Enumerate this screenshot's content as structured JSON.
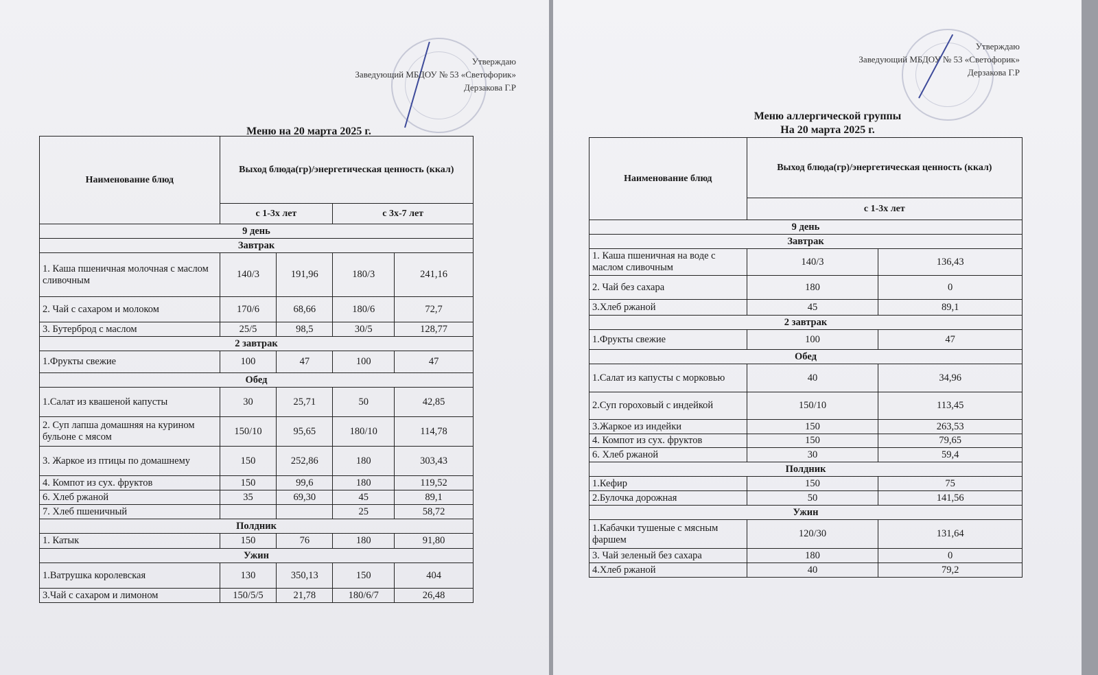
{
  "left": {
    "approval": [
      "Утверждаю",
      "Заведующий МБДОУ № 53 «Светофорик»",
      "Дерзакова Г.Р"
    ],
    "title": "Меню на 20 марта 2025 г.",
    "header": {
      "name": "Наименование блюд",
      "output": "Выход блюда(гр)/энергетическая ценность (ккал)",
      "age1": "с 1-3х лет",
      "age2": "с 3х-7 лет"
    },
    "rows": [
      {
        "s": "9 день"
      },
      {
        "s": "Завтрак"
      },
      {
        "c": [
          "1. Каша пшеничная молочная с маслом сливочным",
          "140/3",
          "191,96",
          "180/3",
          "241,16"
        ],
        "h": 64
      },
      {
        "c": [
          "2. Чай с сахаром и молоком",
          "170/6",
          "68,66",
          "180/6",
          "72,7"
        ],
        "h": 37
      },
      {
        "c": [
          "3. Бутерброд с маслом",
          "25/5",
          "98,5",
          "30/5",
          "128,77"
        ],
        "h": 21
      },
      {
        "s": "2  завтрак"
      },
      {
        "c": [
          "1.Фрукты свежие",
          "100",
          "47",
          "100",
          "47"
        ],
        "h": 32
      },
      {
        "s": "Обед"
      },
      {
        "c": [
          "1.Салат из квашеной капусты",
          "30",
          "25,71",
          "50",
          "42,85"
        ],
        "h": 43
      },
      {
        "c": [
          "2. Суп лапша домашняя  на курином бульоне с мясом",
          "150/10",
          "95,65",
          "180/10",
          "114,78"
        ],
        "h": 43
      },
      {
        "c": [
          "3. Жаркое  из птицы по домашнему",
          "150",
          "252,86",
          "180",
          "303,43"
        ],
        "h": 43
      },
      {
        "c": [
          "4. Компот из сух. фруктов",
          "150",
          "99,6",
          "180",
          "119,52"
        ],
        "h": 21
      },
      {
        "c": [
          "6. Хлеб ржаной",
          "35",
          "69,30",
          "45",
          "89,1"
        ],
        "h": 21
      },
      {
        "c": [
          "7. Хлеб пшеничный",
          "",
          "",
          "25",
          "58,72"
        ],
        "h": 21
      },
      {
        "s": "Полдник"
      },
      {
        "c": [
          "1. Катык",
          "150",
          "76",
          "180",
          "91,80"
        ],
        "h": 22
      },
      {
        "s": "Ужин"
      },
      {
        "c": [
          "1.Ватрушка королевская",
          "130",
          "350,13",
          "150",
          "404"
        ],
        "h": 37
      },
      {
        "c": [
          "3.Чай с сахаром и лимоном",
          "150/5/5",
          "21,78",
          "180/6/7",
          "26,48"
        ],
        "h": 21
      }
    ]
  },
  "right": {
    "approval": [
      "Утверждаю",
      "Заведующий МБДОУ № 53 «Светофорик»",
      "Дерзакова Г.Р"
    ],
    "title": "Меню аллергической группы",
    "subtitle": "На 20 марта  2025 г.",
    "header": {
      "name": "Наименование блюд",
      "output": "Выход блюда(гр)/энергетическая ценность (ккал)",
      "age1": "с 1-3х лет"
    },
    "rows": [
      {
        "s": "9 день"
      },
      {
        "s": "Завтрак"
      },
      {
        "c": [
          "1. Каша пшеничная на воде с маслом сливочным",
          "140/3",
          "136,43"
        ],
        "h": 39
      },
      {
        "c": [
          "2. Чай без сахара",
          "180",
          "0"
        ],
        "h": 35
      },
      {
        "c": [
          "3.Хлеб ржаной",
          "45",
          "89,1"
        ],
        "h": 23
      },
      {
        "s": "2  завтрак"
      },
      {
        "c": [
          "1.Фрукты свежие",
          "100",
          "47"
        ],
        "h": 29
      },
      {
        "s": "Обед"
      },
      {
        "c": [
          "1.Салат из капусты с морковью",
          "40",
          "34,96"
        ],
        "h": 41
      },
      {
        "c": [
          "2.Суп гороховый с индейкой",
          "150/10",
          "113,45"
        ],
        "h": 40
      },
      {
        "c": [
          "3.Жаркое из индейки",
          "150",
          "263,53"
        ],
        "h": 21
      },
      {
        "c": [
          "4. Компот из сух. фруктов",
          "150",
          "79,65"
        ],
        "h": 20
      },
      {
        "c": [
          "6. Хлеб ржаной",
          "30",
          "59,4"
        ],
        "h": 21
      },
      {
        "s": "Полдник"
      },
      {
        "c": [
          "1.Кефир",
          "150",
          "75"
        ],
        "h": 21
      },
      {
        "c": [
          "2.Булочка дорожная",
          "50",
          "141,56"
        ],
        "h": 21
      },
      {
        "s": "Ужин"
      },
      {
        "c": [
          "1.Кабачки тушеные с мясным фаршем",
          "120/30",
          "131,64"
        ],
        "h": 42
      },
      {
        "c": [
          "3. Чай зеленый без сахара",
          "180",
          "0"
        ],
        "h": 21
      },
      {
        "c": [
          "4.Хлеб ржаной",
          "40",
          "79,2"
        ],
        "h": 21
      }
    ]
  },
  "colors": {
    "ink": "#1a1a1a",
    "stamp": "#787da0",
    "pen": "#3d4a9a"
  }
}
